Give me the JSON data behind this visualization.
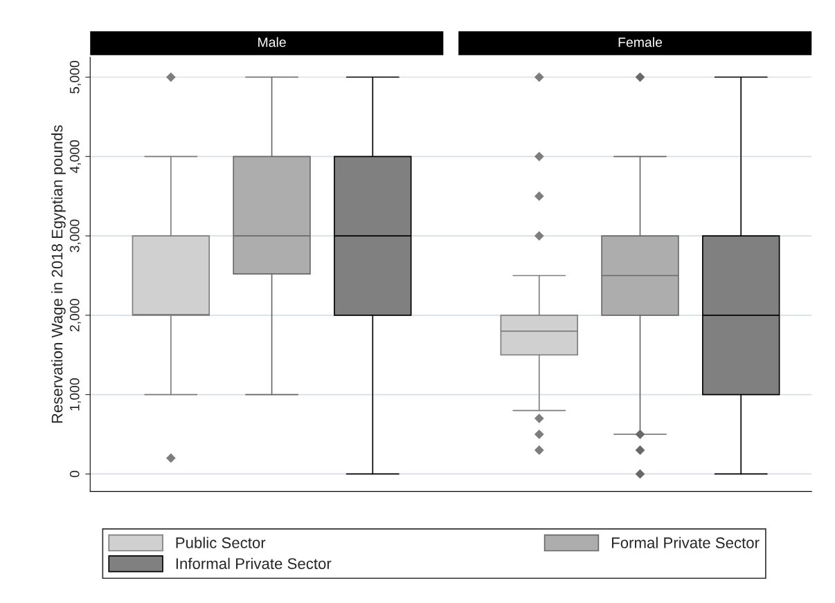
{
  "chart_data": {
    "type": "box",
    "ylabel": "Reservation Wage in 2018 Egyptian pounds",
    "categories": [
      "Male",
      "Female"
    ],
    "ylim": [
      -220,
      5250
    ],
    "yticks": [
      0,
      {
        "value": 1000,
        "label": "1,000"
      },
      {
        "value": 2000,
        "label": "2,000"
      },
      {
        "value": 3000,
        "label": "3,000"
      },
      {
        "value": 4000,
        "label": "4,000"
      },
      {
        "value": 5000,
        "label": "5,000"
      }
    ],
    "grid": "y",
    "legend": "bottom",
    "marker": "diamond",
    "series": [
      {
        "name": "Public Sector",
        "color": "#d0d0d0",
        "boxes": [
          {
            "low": 1000,
            "q1": 2000,
            "median": 2010,
            "q3": 3000,
            "high": 4000,
            "outliers": [
              200,
              5000
            ]
          },
          {
            "low": 800,
            "q1": 1500,
            "median": 1800,
            "q3": 2000,
            "high": 2500,
            "outliers": [
              300,
              500,
              700,
              3000,
              3500,
              4000,
              5000
            ]
          }
        ]
      },
      {
        "name": "Formal Private Sector",
        "color": "#adadad",
        "boxes": [
          {
            "low": 1000,
            "q1": 2520,
            "median": 3000,
            "q3": 4000,
            "high": 5000
          },
          {
            "low": 500,
            "q1": 2000,
            "median": 2500,
            "q3": 3000,
            "high": 4000,
            "outliers": [
              0,
              300,
              500,
              5000
            ]
          }
        ]
      },
      {
        "name": "Informal Private Sector",
        "color": "#808080",
        "boxes": [
          {
            "low": 0,
            "q1": 2000,
            "median": 3000,
            "q3": 4000,
            "high": 5000
          },
          {
            "low": 0,
            "q1": 1000,
            "median": 2000,
            "q3": 3000,
            "high": 5000
          }
        ]
      }
    ]
  }
}
